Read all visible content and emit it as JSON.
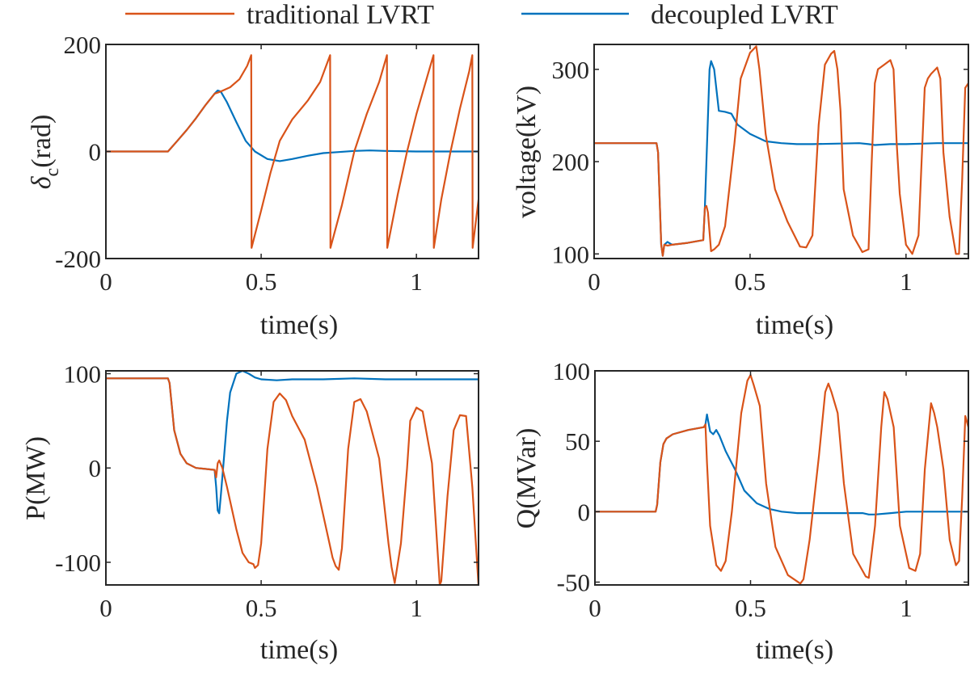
{
  "colors": {
    "traditional": "#D95319",
    "decoupled": "#0072BD",
    "axis": "#262626"
  },
  "legend": {
    "placement": "top-center",
    "entries": [
      {
        "label": "traditional LVRT",
        "color": "#D95319"
      },
      {
        "label": "decoupled LVRT",
        "color": "#0072BD"
      }
    ]
  },
  "chart_data": [
    {
      "type": "line",
      "id": "delta",
      "xlabel": "time(s)",
      "ylabel_main": "δ",
      "ylabel_sub": "c",
      "ylabel_rest": "(rad)",
      "xlim": [
        0,
        1.2
      ],
      "ylim": [
        -200,
        200
      ],
      "xticks": [
        0,
        0.5,
        1
      ],
      "xtick_labels": [
        "0",
        "0.5",
        "1"
      ],
      "yticks": [
        -200,
        0,
        200
      ],
      "ytick_labels": [
        "-200",
        "0",
        "200"
      ],
      "grid": false,
      "series": [
        {
          "name": "traditional LVRT",
          "x": [
            0,
            0.2,
            0.23,
            0.26,
            0.29,
            0.32,
            0.35,
            0.37,
            0.4,
            0.43,
            0.455,
            0.468,
            0.469,
            0.5,
            0.53,
            0.56,
            0.6,
            0.65,
            0.69,
            0.722,
            0.723,
            0.76,
            0.8,
            0.84,
            0.88,
            0.905,
            0.906,
            0.94,
            0.97,
            1.0,
            1.04,
            1.055,
            1.056,
            1.08,
            1.11,
            1.14,
            1.17,
            1.18,
            1.181,
            1.2
          ],
          "y": [
            0,
            0,
            20,
            40,
            62,
            86,
            108,
            112,
            120,
            135,
            160,
            180,
            -180,
            -110,
            -40,
            20,
            60,
            95,
            130,
            180,
            -180,
            -100,
            0,
            70,
            130,
            180,
            -180,
            -80,
            0,
            70,
            150,
            180,
            -180,
            -90,
            0,
            80,
            150,
            180,
            -180,
            -90
          ]
        },
        {
          "name": "decoupled LVRT",
          "x": [
            0,
            0.2,
            0.23,
            0.26,
            0.29,
            0.32,
            0.35,
            0.36,
            0.37,
            0.39,
            0.42,
            0.45,
            0.48,
            0.52,
            0.56,
            0.6,
            0.65,
            0.7,
            0.75,
            0.8,
            0.85,
            0.9,
            1.0,
            1.1,
            1.2
          ],
          "y": [
            0,
            0,
            20,
            40,
            62,
            86,
            108,
            114,
            112,
            92,
            55,
            20,
            0,
            -14,
            -18,
            -14,
            -8,
            -3,
            -1,
            1,
            2,
            1,
            0,
            0,
            0
          ]
        }
      ]
    },
    {
      "type": "line",
      "id": "voltage",
      "xlabel": "time(s)",
      "ylabel": "voltage(kV)",
      "xlim": [
        0,
        1.2
      ],
      "ylim": [
        95,
        327
      ],
      "xticks": [
        0,
        0.5,
        1
      ],
      "xtick_labels": [
        "0",
        "0.5",
        "1"
      ],
      "yticks": [
        100,
        200,
        300
      ],
      "ytick_labels": [
        "100",
        "200",
        "300"
      ],
      "grid": false,
      "series": [
        {
          "name": "traditional LVRT",
          "x": [
            0,
            0.2,
            0.205,
            0.215,
            0.22,
            0.225,
            0.235,
            0.25,
            0.3,
            0.35,
            0.355,
            0.36,
            0.365,
            0.375,
            0.385,
            0.4,
            0.42,
            0.45,
            0.47,
            0.5,
            0.52,
            0.53,
            0.55,
            0.58,
            0.62,
            0.66,
            0.68,
            0.7,
            0.72,
            0.74,
            0.76,
            0.77,
            0.78,
            0.79,
            0.8,
            0.83,
            0.86,
            0.88,
            0.89,
            0.9,
            0.91,
            0.93,
            0.95,
            0.96,
            0.97,
            0.98,
            1.0,
            1.02,
            1.04,
            1.05,
            1.06,
            1.07,
            1.08,
            1.1,
            1.11,
            1.12,
            1.14,
            1.16,
            1.17,
            1.18,
            1.19,
            1.2
          ],
          "y": [
            220,
            220,
            210,
            110,
            98,
            110,
            109,
            110,
            112,
            115,
            150,
            152,
            145,
            103,
            105,
            110,
            130,
            220,
            290,
            318,
            325,
            300,
            230,
            170,
            135,
            108,
            107,
            120,
            240,
            305,
            317,
            320,
            300,
            255,
            170,
            120,
            102,
            105,
            200,
            285,
            300,
            305,
            310,
            300,
            220,
            165,
            110,
            100,
            120,
            200,
            280,
            290,
            295,
            302,
            290,
            210,
            140,
            100,
            100,
            180,
            280,
            285
          ]
        },
        {
          "name": "decoupled LVRT",
          "x": [
            0,
            0.2,
            0.205,
            0.215,
            0.22,
            0.225,
            0.235,
            0.25,
            0.3,
            0.35,
            0.355,
            0.37,
            0.375,
            0.385,
            0.4,
            0.42,
            0.44,
            0.46,
            0.5,
            0.55,
            0.6,
            0.65,
            0.7,
            0.85,
            0.88,
            0.9,
            0.95,
            1.0,
            1.1,
            1.2
          ],
          "y": [
            220,
            220,
            210,
            110,
            98,
            110,
            113,
            110,
            112,
            115,
            150,
            300,
            309,
            300,
            255,
            254,
            252,
            240,
            230,
            222,
            220,
            219,
            219,
            220,
            219,
            218,
            219,
            219,
            220,
            220
          ]
        }
      ]
    },
    {
      "type": "line",
      "id": "active-power",
      "xlabel": "time(s)",
      "ylabel": "P(MW)",
      "xlim": [
        0,
        1.2
      ],
      "ylim": [
        -124,
        103
      ],
      "xticks": [
        0,
        0.5,
        1
      ],
      "xtick_labels": [
        "0",
        "0.5",
        "1"
      ],
      "yticks": [
        -100,
        0,
        100
      ],
      "ytick_labels": [
        "-100",
        "0",
        "100"
      ],
      "grid": false,
      "series": [
        {
          "name": "traditional LVRT",
          "x": [
            0,
            0.2,
            0.205,
            0.22,
            0.24,
            0.26,
            0.29,
            0.32,
            0.35,
            0.355,
            0.36,
            0.365,
            0.375,
            0.39,
            0.42,
            0.44,
            0.46,
            0.475,
            0.48,
            0.49,
            0.5,
            0.52,
            0.54,
            0.56,
            0.58,
            0.6,
            0.64,
            0.68,
            0.72,
            0.73,
            0.74,
            0.75,
            0.76,
            0.78,
            0.8,
            0.82,
            0.84,
            0.88,
            0.91,
            0.92,
            0.93,
            0.95,
            0.97,
            0.98,
            1.0,
            1.02,
            1.05,
            1.075,
            1.08,
            1.1,
            1.12,
            1.14,
            1.16,
            1.18,
            1.2
          ],
          "y": [
            95,
            95,
            90,
            40,
            15,
            5,
            0,
            -1,
            -2,
            -10,
            5,
            8,
            0,
            -20,
            -65,
            -90,
            -100,
            -102,
            -106,
            -103,
            -80,
            20,
            70,
            79,
            72,
            55,
            30,
            -20,
            -80,
            -95,
            -104,
            -108,
            -85,
            20,
            70,
            73,
            60,
            10,
            -80,
            -105,
            -122,
            -80,
            0,
            50,
            64,
            60,
            5,
            -124,
            -120,
            -30,
            40,
            56,
            55,
            -20,
            -125
          ]
        },
        {
          "name": "decoupled LVRT",
          "x": [
            0,
            0.2,
            0.205,
            0.22,
            0.24,
            0.26,
            0.29,
            0.32,
            0.35,
            0.355,
            0.36,
            0.365,
            0.37,
            0.38,
            0.39,
            0.4,
            0.42,
            0.44,
            0.46,
            0.48,
            0.5,
            0.55,
            0.6,
            0.7,
            0.8,
            0.9,
            1.0,
            1.1,
            1.2
          ],
          "y": [
            95,
            95,
            90,
            40,
            15,
            5,
            0,
            -1,
            -2,
            -20,
            -45,
            -48,
            -30,
            10,
            50,
            80,
            100,
            103,
            100,
            96,
            94,
            93,
            94,
            94,
            95,
            94,
            94,
            94,
            94
          ]
        }
      ]
    },
    {
      "type": "line",
      "id": "reactive-power",
      "xlabel": "time(s)",
      "ylabel": "Q(MVar)",
      "xlim": [
        0,
        1.2
      ],
      "ylim": [
        -52,
        100
      ],
      "xticks": [
        0,
        0.5,
        1
      ],
      "xtick_labels": [
        "0",
        "0.5",
        "1"
      ],
      "yticks": [
        -50,
        0,
        50,
        100
      ],
      "ytick_labels": [
        "-50",
        "0",
        "50",
        "100"
      ],
      "grid": false,
      "series": [
        {
          "name": "traditional LVRT",
          "x": [
            0,
            0.195,
            0.2,
            0.21,
            0.22,
            0.23,
            0.25,
            0.3,
            0.35,
            0.355,
            0.36,
            0.37,
            0.39,
            0.405,
            0.42,
            0.44,
            0.47,
            0.49,
            0.5,
            0.51,
            0.53,
            0.55,
            0.58,
            0.62,
            0.66,
            0.67,
            0.69,
            0.72,
            0.74,
            0.75,
            0.76,
            0.78,
            0.8,
            0.83,
            0.87,
            0.88,
            0.9,
            0.92,
            0.93,
            0.94,
            0.96,
            0.98,
            1.01,
            1.03,
            1.045,
            1.06,
            1.08,
            1.09,
            1.1,
            1.12,
            1.14,
            1.16,
            1.17,
            1.18,
            1.19,
            1.2
          ],
          "y": [
            0,
            0,
            5,
            35,
            48,
            52,
            55,
            58,
            60,
            62,
            35,
            -10,
            -38,
            -42,
            -35,
            0,
            70,
            93,
            97,
            90,
            75,
            20,
            -25,
            -45,
            -51,
            -48,
            -20,
            40,
            85,
            91,
            85,
            70,
            20,
            -30,
            -46,
            -47,
            -10,
            60,
            85,
            80,
            60,
            -10,
            -40,
            -42,
            -30,
            30,
            77,
            70,
            60,
            30,
            -20,
            -38,
            -35,
            10,
            68,
            60
          ]
        },
        {
          "name": "decoupled LVRT",
          "x": [
            0,
            0.195,
            0.2,
            0.21,
            0.22,
            0.23,
            0.25,
            0.3,
            0.35,
            0.355,
            0.36,
            0.37,
            0.38,
            0.39,
            0.4,
            0.42,
            0.45,
            0.48,
            0.52,
            0.56,
            0.6,
            0.65,
            0.7,
            0.8,
            0.86,
            0.88,
            0.9,
            0.95,
            1.0,
            1.1,
            1.2
          ],
          "y": [
            0,
            0,
            5,
            35,
            48,
            52,
            55,
            58,
            60,
            62,
            69,
            57,
            55,
            58,
            54,
            43,
            30,
            15,
            6,
            2,
            0,
            -1,
            -1,
            -1,
            -1,
            -2,
            -2,
            -1,
            0,
            0,
            0
          ]
        }
      ]
    }
  ]
}
